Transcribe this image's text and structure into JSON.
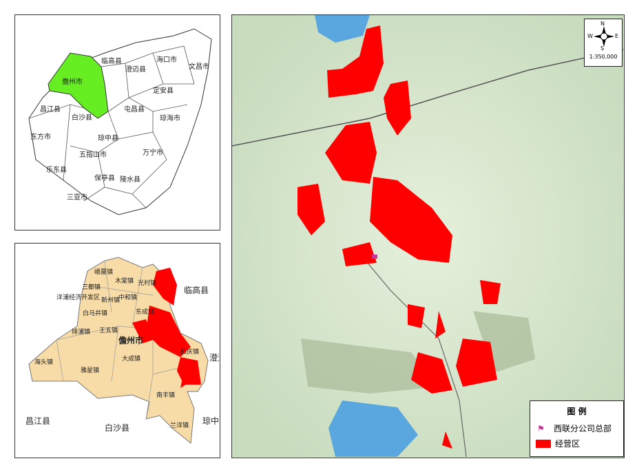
{
  "hainan_map": {
    "highlight_color": "#66ee22",
    "highlighted": "儋州市",
    "labels": [
      "临高县",
      "海口市",
      "澄迈县",
      "文昌市",
      "儋州市",
      "定安县",
      "昌江县",
      "白沙县",
      "屯昌县",
      "琼海市",
      "东方市",
      "琼中县",
      "五指山市",
      "万宁市",
      "乐东县",
      "保亭县",
      "陵水县",
      "三亚市"
    ]
  },
  "danzhou_map": {
    "fill_color": "#f8dca8",
    "region_label": "儋州市",
    "towns": [
      "峨蔓镇",
      "木棠镇",
      "三都镇",
      "光村镇",
      "洋浦经济开发区",
      "新州镇",
      "中和镇",
      "白马井镇",
      "东成镇",
      "排浦镇",
      "王五镇",
      "海头镇",
      "大成镇",
      "和庆镇",
      "雅星镇",
      "南丰镇",
      "兰洋镇"
    ],
    "neighbors": [
      "临高县",
      "澄迈县",
      "昌江县",
      "白沙县",
      "琼中县"
    ]
  },
  "main_map": {
    "scale": "1:350,000",
    "compass": {
      "n": "N",
      "s": "S",
      "e": "E",
      "w": "W"
    }
  },
  "legend": {
    "title": "图 例",
    "items": [
      {
        "label": "西联分公司总部",
        "icon": "flag-icon",
        "color": "#cc3399"
      },
      {
        "label": "经营区",
        "icon": "red-area-swatch",
        "color": "#ff0000"
      }
    ]
  }
}
